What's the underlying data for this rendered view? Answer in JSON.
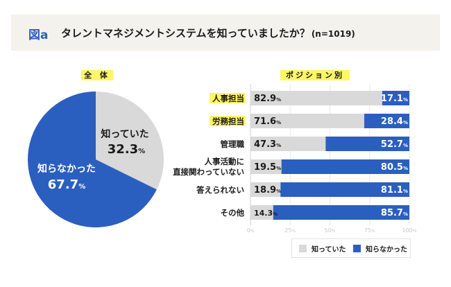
{
  "header": {
    "figure_label": "図a",
    "title": "タレントマネジメントシステムを知っていましたか？",
    "sample": "(n=1019)"
  },
  "colors": {
    "knew": "#d9d9d9",
    "did_not_know": "#2b5fbf",
    "highlight": "#fff566",
    "header_bg": "#f4f2ed"
  },
  "chart_data": [
    {
      "type": "pie",
      "title": "全 体",
      "slices": [
        {
          "label": "知っていた",
          "value": 32.3,
          "display": "32.3",
          "unit": "%"
        },
        {
          "label": "知らなかった",
          "value": 67.7,
          "display": "67.7",
          "unit": "%"
        }
      ]
    },
    {
      "type": "bar",
      "stacked": true,
      "orientation": "horizontal",
      "title": "ポジション別",
      "categories": [
        "人事担当",
        "労務担当",
        "管理職",
        "人事活動に\n直接関わっていない",
        "答えられない",
        "その他"
      ],
      "category_lines": [
        [
          "人事担当"
        ],
        [
          "労務担当"
        ],
        [
          "管理職"
        ],
        [
          "人事活動に",
          "直接関わっていない"
        ],
        [
          "答えられない"
        ],
        [
          "その他"
        ]
      ],
      "highlighted_categories": [
        0,
        1
      ],
      "series": [
        {
          "name": "知っていた",
          "values": [
            82.9,
            71.6,
            47.3,
            19.5,
            18.9,
            14.3
          ]
        },
        {
          "name": "知らなかった",
          "values": [
            17.1,
            28.4,
            52.7,
            80.5,
            81.1,
            85.7
          ]
        }
      ],
      "xlim": [
        0,
        100
      ],
      "xticks": [
        "0%",
        "25%",
        "50%",
        "75%",
        "100%"
      ],
      "xtick_values": [
        0,
        25,
        50,
        75,
        100
      ],
      "grid": true,
      "legend": "bottom",
      "unit": "%"
    }
  ],
  "legend": [
    {
      "label": "知っていた"
    },
    {
      "label": "知らなかった"
    }
  ]
}
